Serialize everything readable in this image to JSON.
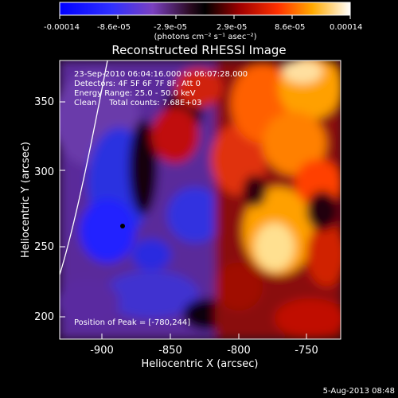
{
  "colorbar": {
    "tick_labels": [
      "-0.00014",
      "-8.6e-05",
      "-2.9e-05",
      "2.9e-05",
      "8.6e-05",
      "0.00014"
    ],
    "units_label": "(photons cm⁻² s⁻¹ asec⁻²)"
  },
  "title": "Reconstructed RHESSI Image",
  "info": {
    "line1": "23-Sep-2010 06:04:16.000 to 06:07:28.000",
    "line2": "Detectors: 4F 5F 6F 7F 8F, Att 0",
    "line3": "Energy Range: 25.0 - 50.0 keV",
    "line4": "Clean     Total counts: 7.68E+03"
  },
  "peak_text": "Position of Peak = [-780,244]",
  "axes": {
    "xlabel": "Heliocentric X (arcsec)",
    "ylabel": "Heliocentric Y (arcsec)",
    "x_ticks": [
      "-900",
      "-850",
      "-800",
      "-750"
    ],
    "y_ticks": [
      "350",
      "300",
      "250",
      "200"
    ]
  },
  "footer_date": "5-Aug-2013 08:48",
  "colors": {
    "background": "#000000",
    "limb": "#ffffff"
  },
  "image_description_icon": "solar-xray-heatmap"
}
